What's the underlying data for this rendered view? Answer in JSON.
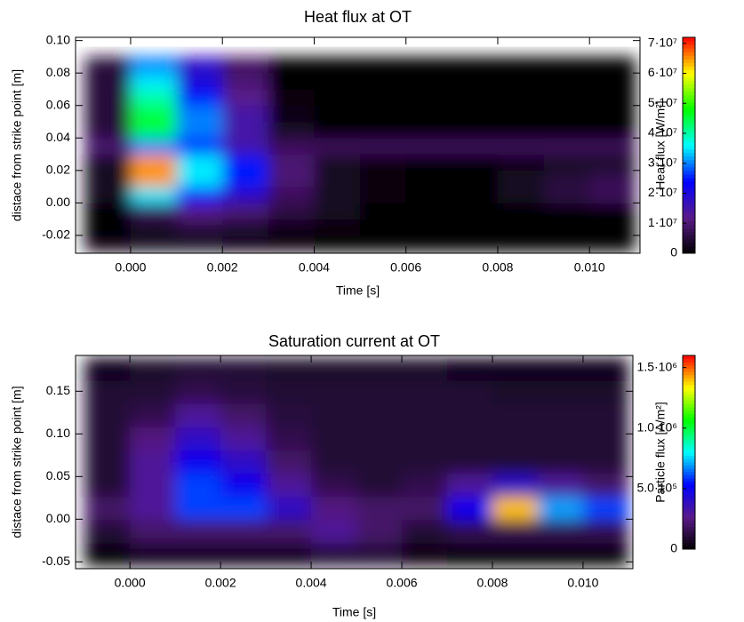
{
  "chart_data": [
    {
      "type": "heatmap",
      "title": "Heat flux at OT",
      "xlabel": "Time [s]",
      "ylabel": "distace from strike point [m]",
      "colorbar_label": "Heat flux [W/m²]",
      "colormap": [
        "#000000",
        "#5a1a8a",
        "#0000ff",
        "#00ffff",
        "#00ff00",
        "#ffff00",
        "#ff0000"
      ],
      "xlim": [
        -0.0012,
        0.0111
      ],
      "ylim": [
        -0.031,
        0.102
      ],
      "clim": [
        0,
        72000000
      ],
      "xticks": [
        {
          "value": 0,
          "label": "0.000"
        },
        0.002,
        0.004,
        0.006,
        0.008,
        {
          "value": 0.01,
          "label": "0.010"
        }
      ],
      "yticks": [
        -0.02,
        {
          "value": 0,
          "label": "0.00"
        },
        0.02,
        0.04,
        0.06,
        0.08,
        {
          "value": 0.1,
          "label": "0.10"
        }
      ],
      "cticks": [
        0,
        {
          "value": 10000000,
          "label": "1·10⁷"
        },
        {
          "value": 20000000,
          "label": "2·10⁷"
        },
        {
          "value": 30000000,
          "label": "3·10⁷"
        },
        {
          "value": 40000000,
          "label": "4·10⁷"
        },
        {
          "value": 50000000,
          "label": "5·10⁷"
        },
        {
          "value": 60000000,
          "label": "6·10⁷"
        },
        {
          "value": 70000000,
          "label": "7·10⁷"
        }
      ],
      "x": [
        -0.0005,
        0.0005,
        0.0015,
        0.0025,
        0.0035,
        0.0045,
        0.0055,
        0.0065,
        0.0075,
        0.0085,
        0.0095,
        0.0105
      ],
      "y": [
        -0.025,
        -0.015,
        -0.005,
        0.005,
        0.015,
        0.025,
        0.035,
        0.045,
        0.055,
        0.065,
        0.075,
        0.085
      ],
      "z": [
        [
          2000000.0,
          3000000.0,
          3000000.0,
          2000000.0,
          1000000.0,
          0,
          0,
          0,
          0,
          0,
          0,
          0
        ],
        [
          0,
          3000000.0,
          5000000.0,
          4000000.0,
          2000000.0,
          1000000.0,
          0,
          0,
          0,
          0,
          0,
          0
        ],
        [
          0,
          8000000.0,
          12000000.0,
          10000000.0,
          6000000.0,
          3000000.0,
          0,
          0,
          0,
          0,
          0,
          0
        ],
        [
          3000000.0,
          35000000.0,
          25000000.0,
          18000000.0,
          8000000.0,
          3000000.0,
          1000000.0,
          0,
          0,
          3000000.0,
          6000000.0,
          8000000.0
        ],
        [
          3000000.0,
          65000000.0,
          35000000.0,
          25000000.0,
          10000000.0,
          3000000.0,
          1000000.0,
          0,
          0,
          3000000.0,
          5000000.0,
          7000000.0
        ],
        [
          3000000.0,
          65000000.0,
          35000000.0,
          25000000.0,
          10000000.0,
          3000000.0,
          1000000.0,
          0,
          0,
          2000000.0,
          3000000.0,
          3000000.0
        ],
        [
          10000000.0,
          30000000.0,
          25000000.0,
          15000000.0,
          8000000.0,
          8000000.0,
          8000000.0,
          8000000.0,
          8000000.0,
          8000000.0,
          8000000.0,
          8000000.0
        ],
        [
          5000000.0,
          45000000.0,
          30000000.0,
          15000000.0,
          3000000.0,
          0,
          0,
          0,
          0,
          0,
          0,
          0
        ],
        [
          5000000.0,
          45000000.0,
          30000000.0,
          15000000.0,
          2000000.0,
          0,
          0,
          0,
          0,
          0,
          0,
          0
        ],
        [
          5000000.0,
          40000000.0,
          25000000.0,
          12000000.0,
          1000000.0,
          0,
          0,
          0,
          0,
          0,
          0,
          0
        ],
        [
          5000000.0,
          35000000.0,
          20000000.0,
          10000000.0,
          0,
          0,
          0,
          0,
          0,
          0,
          0,
          0
        ],
        [
          5000000.0,
          30000000.0,
          18000000.0,
          8000000.0,
          0,
          0,
          0,
          0,
          0,
          0,
          0,
          0
        ]
      ]
    },
    {
      "type": "heatmap",
      "title": "Saturation current at OT",
      "xlabel": "Time [s]",
      "ylabel": "distace from strike point [m]",
      "colorbar_label": "Particle flux [A/m²]",
      "colormap": [
        "#000000",
        "#5a1a8a",
        "#0000ff",
        "#00ffff",
        "#00ff00",
        "#ffff00",
        "#ff0000"
      ],
      "xlim": [
        -0.0012,
        0.0111
      ],
      "ylim": [
        -0.058,
        0.192
      ],
      "clim": [
        0,
        1600000
      ],
      "xticks": [
        {
          "value": 0,
          "label": "0.000"
        },
        0.002,
        0.004,
        0.006,
        0.008,
        {
          "value": 0.01,
          "label": "0.010"
        }
      ],
      "yticks": [
        -0.05,
        {
          "value": 0,
          "label": "0.00"
        },
        0.05,
        {
          "value": 0.1,
          "label": "0.10"
        },
        0.15
      ],
      "cticks": [
        0,
        {
          "value": 500000,
          "label": "5.0·10⁵"
        },
        {
          "value": 1000000,
          "label": "1.0·10⁶"
        },
        {
          "value": 1500000,
          "label": "1.5·10⁶"
        }
      ],
      "x": [
        -0.0005,
        0.0005,
        0.0015,
        0.0025,
        0.0035,
        0.0045,
        0.0055,
        0.0065,
        0.0075,
        0.0085,
        0.0095,
        0.0105
      ],
      "y": [
        -0.0414,
        -0.0142,
        0.013,
        0.0402,
        0.0674,
        0.0946,
        0.1218,
        0.149,
        0.1762
      ],
      "z": [
        [
          0,
          50000.0,
          50000.0,
          50000.0,
          50000.0,
          100000.0,
          100000.0,
          30000.0,
          0,
          0,
          0,
          0
        ],
        [
          100000.0,
          200000.0,
          200000.0,
          200000.0,
          200000.0,
          300000.0,
          200000.0,
          100000.0,
          150000.0,
          150000.0,
          150000.0,
          150000.0
        ],
        [
          200000.0,
          300000.0,
          600000.0,
          600000.0,
          400000.0,
          250000.0,
          200000.0,
          200000.0,
          500000.0,
          1400000.0,
          700000.0,
          600000.0
        ],
        [
          100000.0,
          300000.0,
          600000.0,
          500000.0,
          300000.0,
          150000.0,
          100000.0,
          150000.0,
          300000.0,
          400000.0,
          300000.0,
          200000.0
        ],
        [
          100000.0,
          300000.0,
          500000.0,
          400000.0,
          200000.0,
          100000.0,
          100000.0,
          100000.0,
          100000.0,
          100000.0,
          100000.0,
          100000.0
        ],
        [
          100000.0,
          250000.0,
          400000.0,
          300000.0,
          150000.0,
          100000.0,
          100000.0,
          100000.0,
          100000.0,
          100000.0,
          100000.0,
          100000.0
        ],
        [
          100000.0,
          150000.0,
          300000.0,
          200000.0,
          120000.0,
          100000.0,
          100000.0,
          100000.0,
          100000.0,
          100000.0,
          100000.0,
          100000.0
        ],
        [
          100000.0,
          100000.0,
          150000.0,
          120000.0,
          100000.0,
          100000.0,
          100000.0,
          100000.0,
          100000.0,
          80000.0,
          80000.0,
          80000.0
        ],
        [
          50000.0,
          80000.0,
          100000.0,
          100000.0,
          80000.0,
          80000.0,
          80000.0,
          80000.0,
          50000.0,
          50000.0,
          50000.0,
          50000.0
        ]
      ]
    }
  ]
}
